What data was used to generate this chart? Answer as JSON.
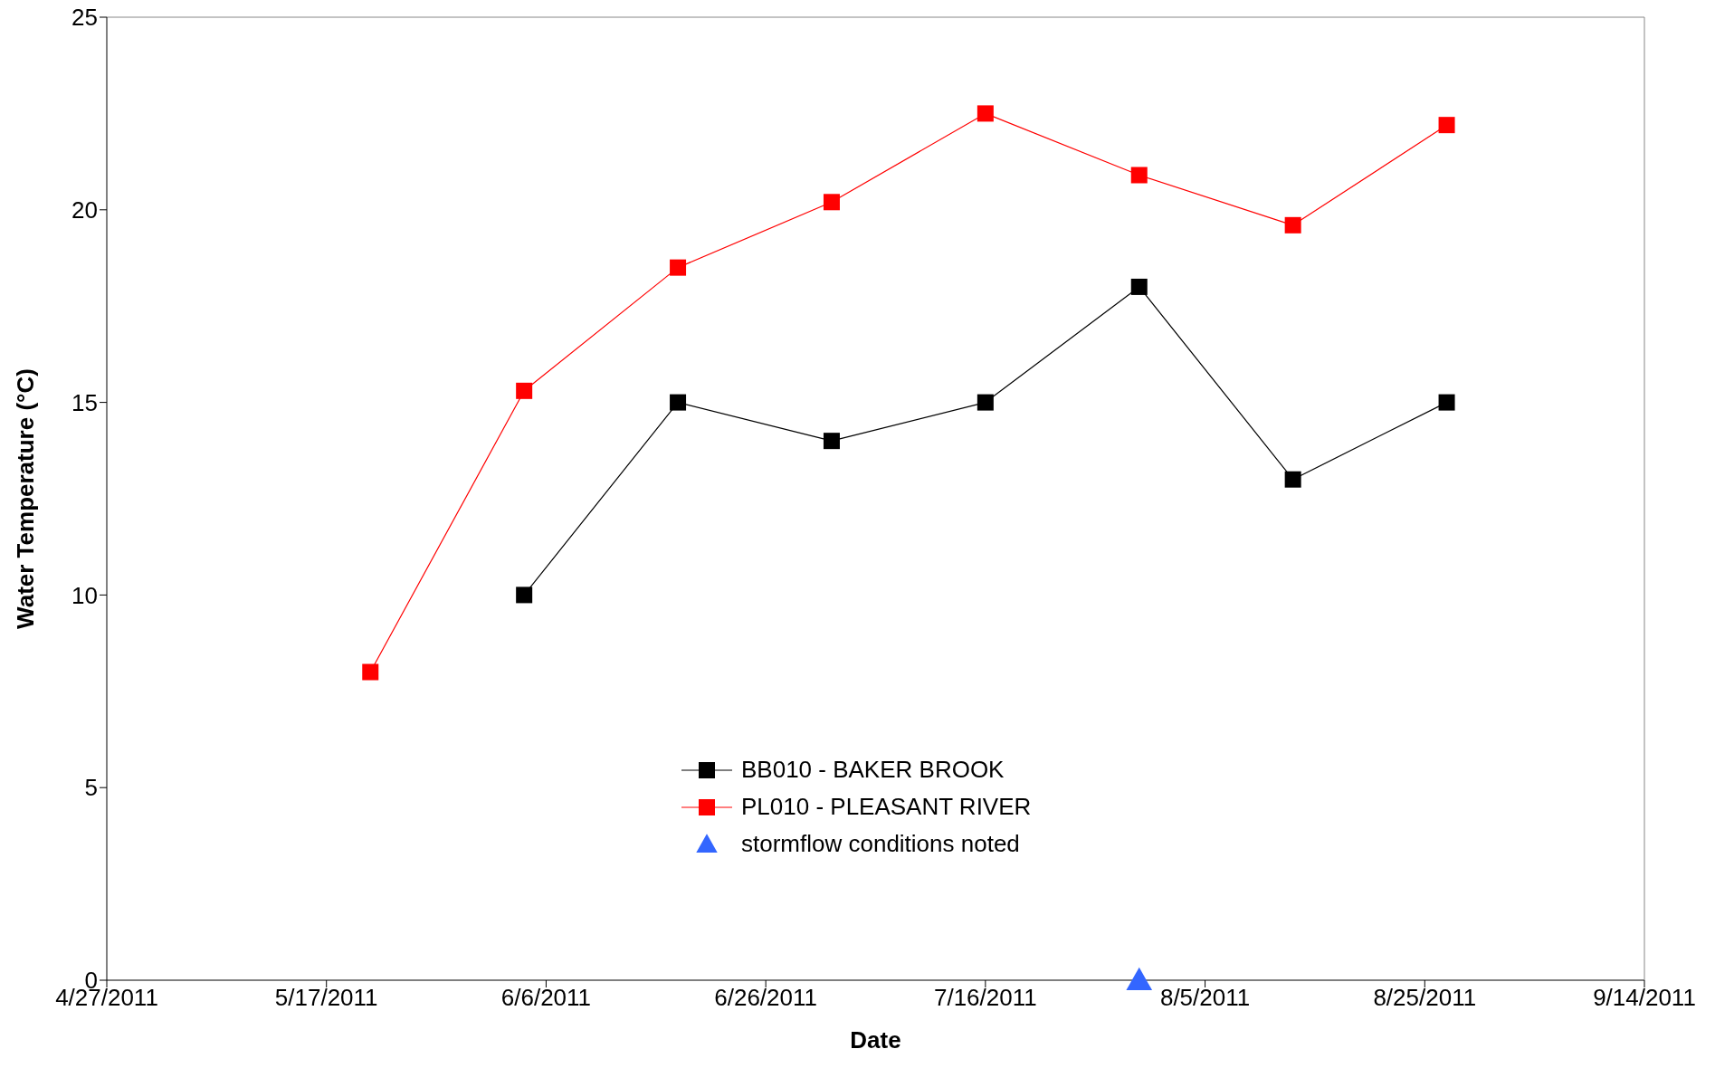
{
  "chart_data": {
    "type": "line",
    "xlabel": "Date",
    "ylabel": "Water Temperature (°C)",
    "xlim": [
      "2011-04-27",
      "2011-09-14"
    ],
    "xticks": [
      {
        "value": "2011-04-27",
        "label": "4/27/2011"
      },
      {
        "value": "2011-05-17",
        "label": "5/17/2011"
      },
      {
        "value": "2011-06-06",
        "label": "6/6/2011"
      },
      {
        "value": "2011-06-26",
        "label": "6/26/2011"
      },
      {
        "value": "2011-07-16",
        "label": "7/16/2011"
      },
      {
        "value": "2011-08-05",
        "label": "8/5/2011"
      },
      {
        "value": "2011-08-25",
        "label": "8/25/2011"
      },
      {
        "value": "2011-09-14",
        "label": "9/14/2011"
      }
    ],
    "ylim": [
      0,
      25
    ],
    "yticks": [
      0,
      5,
      10,
      15,
      20,
      25
    ],
    "grid": false,
    "legend": "bottom",
    "series": [
      {
        "name": "BB010 - BAKER BROOK",
        "marker": "square",
        "color": "#000000",
        "x": [
          "2011-06-04",
          "2011-06-18",
          "2011-07-02",
          "2011-07-16",
          "2011-07-30",
          "2011-08-13",
          "2011-08-27"
        ],
        "values": [
          10,
          15,
          14,
          15,
          18,
          13,
          15
        ]
      },
      {
        "name": "PL010 - PLEASANT RIVER",
        "marker": "square",
        "color": "#ff0000",
        "x": [
          "2011-05-21",
          "2011-06-04",
          "2011-06-18",
          "2011-07-02",
          "2011-07-16",
          "2011-07-30",
          "2011-08-13",
          "2011-08-27"
        ],
        "values": [
          8,
          15.3,
          18.5,
          20.2,
          22.5,
          20.9,
          19.6,
          22.2
        ]
      },
      {
        "name": "stormflow conditions noted",
        "type": "scatter",
        "marker": "triangle",
        "color": "#3366ff",
        "x": [
          "2011-07-30"
        ],
        "values": [
          0
        ]
      }
    ]
  }
}
